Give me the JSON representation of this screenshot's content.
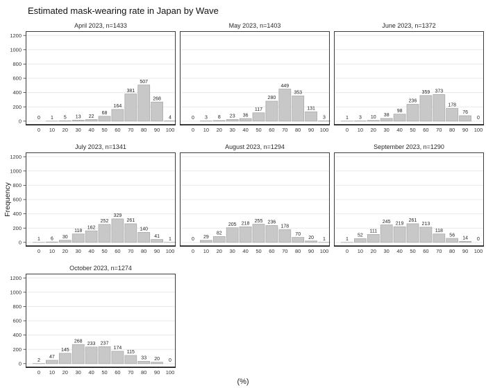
{
  "title": "Estimated mask-wearing rate in Japan by Wave",
  "y_axis_label": "Frequency",
  "x_axis_label": "(%)",
  "colors": {
    "bar_fill": "#c8c8c8",
    "bar_stroke": "#a8a8a8",
    "gridline": "#e9e9e9",
    "panel_border": "#3c3c3c",
    "axis_bottom": "#1a1a1a",
    "tick_text": "#333333",
    "value_text": "#222222"
  },
  "chart_data": {
    "type": "bar",
    "subtype": "faceted-histogram",
    "title": "Estimated mask-wearing rate in Japan by Wave",
    "xlabel": "(%)",
    "ylabel": "Frequency",
    "x_ticks": [
      0,
      10,
      20,
      30,
      40,
      50,
      60,
      70,
      80,
      90,
      100
    ],
    "y_ticks": [
      0,
      200,
      400,
      600,
      800,
      1000,
      1200
    ],
    "ylim": [
      0,
      1200
    ],
    "grid": "horizontal-major",
    "legend": "none",
    "facets_per_row": 3,
    "facets": [
      {
        "title": "April 2023, n=1433",
        "n": 1433,
        "values": [
          0,
          1,
          5,
          13,
          22,
          68,
          164,
          381,
          507,
          268,
          4
        ]
      },
      {
        "title": "May 2023, n=1403",
        "n": 1403,
        "values": [
          0,
          3,
          8,
          23,
          36,
          117,
          280,
          449,
          353,
          131,
          3
        ]
      },
      {
        "title": "June 2023, n=1372",
        "n": 1372,
        "values": [
          1,
          3,
          10,
          38,
          98,
          236,
          359,
          373,
          178,
          76,
          0
        ]
      },
      {
        "title": "July 2023, n=1341",
        "n": 1341,
        "values": [
          1,
          6,
          30,
          118,
          162,
          252,
          329,
          261,
          140,
          41,
          1
        ]
      },
      {
        "title": "August 2023, n=1294",
        "n": 1294,
        "values": [
          0,
          29,
          82,
          205,
          218,
          255,
          236,
          178,
          70,
          20,
          1
        ]
      },
      {
        "title": "September 2023, n=1290",
        "n": 1290,
        "values": [
          1,
          52,
          111,
          245,
          219,
          261,
          213,
          118,
          56,
          14,
          0
        ]
      },
      {
        "title": "October 2023, n=1274",
        "n": 1274,
        "values": [
          2,
          47,
          145,
          268,
          233,
          237,
          174,
          115,
          33,
          20,
          0
        ]
      }
    ]
  }
}
